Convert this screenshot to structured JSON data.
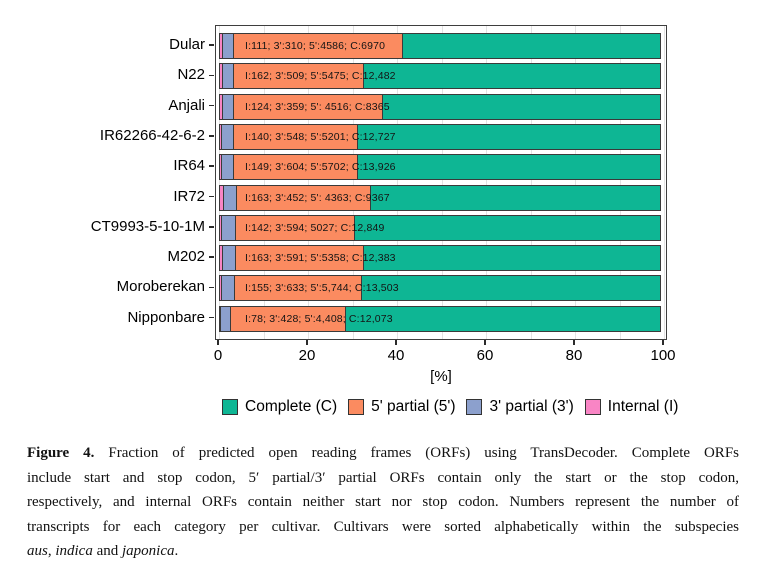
{
  "figure": {
    "caption": {
      "lines": [
        [
          {
            "t": "Figure 4.",
            "b": true
          },
          {
            "t": " Fraction of predicted open reading frames (ORFs) using TransDecoder. Complete ORFs"
          }
        ],
        [
          {
            "t": "include start and stop codon, 5′ partial/3′ partial ORFs contain only the start or the stop codon,"
          }
        ],
        [
          {
            "t": "respectively, and internal ORFs contain neither start nor stop codon. Numbers represent the number of"
          }
        ],
        [
          {
            "t": "transcripts for each category per cultivar. Cultivars were sorted alphabetically within the subspecies"
          }
        ],
        [
          {
            "t": "aus",
            "i": true
          },
          {
            "t": ", "
          },
          {
            "t": "indica",
            "i": true
          },
          {
            "t": " and "
          },
          {
            "t": "japonica",
            "i": true
          },
          {
            "t": "."
          }
        ]
      ]
    }
  },
  "chart_data": {
    "type": "bar",
    "orientation": "horizontal",
    "stacked": true,
    "normalized_to_percent": true,
    "title": "",
    "xlabel": "[%]",
    "ylabel": "",
    "xlim": [
      0,
      100
    ],
    "x_ticks": [
      0,
      20,
      40,
      60,
      80,
      100
    ],
    "grid": "vertical light gray lines every 10%",
    "legend_position": "bottom",
    "categories": [
      "Dular",
      "N22",
      "Anjali",
      "IR62266-42-6-2",
      "IR64",
      "IR72",
      "CT9993-5-10-1M",
      "M202",
      "Moroberekan",
      "Nipponbare"
    ],
    "series": [
      {
        "name": "Internal (I)",
        "key": "internal",
        "color": "#F985C5",
        "values": [
          111,
          162,
          124,
          140,
          149,
          163,
          142,
          163,
          155,
          78
        ]
      },
      {
        "name": "3' partial (3')",
        "key": "3-partial",
        "color": "#8CA0CD",
        "values": [
          310,
          509,
          359,
          548,
          604,
          452,
          594,
          591,
          633,
          428
        ]
      },
      {
        "name": "5' partial (5')",
        "key": "5-partial",
        "color": "#FB8B60",
        "values": [
          4586,
          5475,
          4516,
          5201,
          5702,
          4363,
          5027,
          5358,
          5744,
          4408
        ]
      },
      {
        "name": "Complete (C)",
        "key": "complete",
        "color": "#0EB694",
        "values": [
          6970,
          12482,
          8365,
          12727,
          13926,
          9367,
          12849,
          12383,
          13503,
          12073
        ]
      }
    ],
    "bar_labels": [
      "I:111; 3':310; 5':4586; C:6970",
      "I:162; 3':509; 5':5475; C:12,482",
      "I:124; 3':359; 5': 4516; C:8365",
      "I:140; 3':548; 5':5201; C:12,727",
      "I:149; 3':604; 5':5702; C:13,926",
      "I:163; 3':452; 5': 4363; C:9367",
      "I:142; 3':594; 5027; C:12,849",
      "I:163; 3':591; 5':5358; C:12,383",
      "I:155; 3':633; 5':5,744; C:13,503",
      "I:78; 3':428; 5':4,408; C:12,073"
    ],
    "legend": {
      "items": [
        {
          "label": "Complete (C)",
          "color": "#0EB694"
        },
        {
          "label": "5' partial (5')",
          "color": "#FB8B60"
        },
        {
          "label": "3' partial (3')",
          "color": "#8CA0CD"
        },
        {
          "label": "Internal (I)",
          "color": "#F985C5"
        }
      ]
    }
  }
}
